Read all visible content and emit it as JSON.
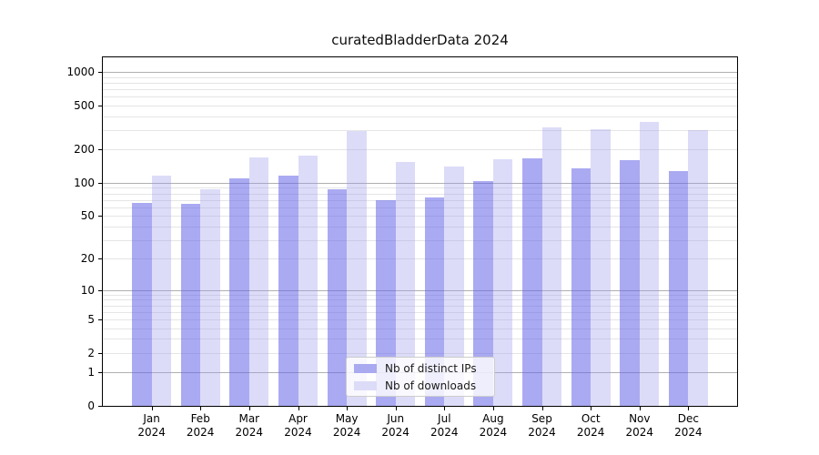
{
  "figure": {
    "title": "curatedBladderData 2024"
  },
  "chart_data": {
    "type": "bar",
    "title": "curatedBladderData 2024",
    "categories": [
      "Jan",
      "Feb",
      "Mar",
      "Apr",
      "May",
      "Jun",
      "Jul",
      "Aug",
      "Sep",
      "Oct",
      "Nov",
      "Dec"
    ],
    "category_year": "2024",
    "series": [
      {
        "name": "Nb of distinct IPs",
        "color": "#aaaaf0",
        "fill": "rgba(100,100,232,0.55)",
        "values": [
          66,
          64,
          110,
          117,
          88,
          70,
          73,
          103,
          166,
          135,
          160,
          128
        ]
      },
      {
        "name": "Nb of downloads",
        "color": "#dcdcf8",
        "fill": "rgba(155,155,235,0.35)",
        "values": [
          117,
          87,
          170,
          175,
          295,
          156,
          140,
          164,
          318,
          306,
          356,
          302
        ]
      }
    ],
    "yscale": "log1p",
    "yticks": [
      0,
      1,
      2,
      5,
      10,
      20,
      50,
      100,
      200,
      500,
      1000
    ],
    "major_gridlines": [
      1,
      10,
      100,
      1000
    ],
    "minor_gridlines": [
      2,
      3,
      4,
      5,
      6,
      7,
      8,
      9,
      20,
      30,
      40,
      50,
      60,
      70,
      80,
      90,
      200,
      300,
      400,
      500,
      600,
      700,
      800,
      900
    ],
    "ylim": [
      0,
      1355
    ],
    "xlabel": "",
    "ylabel": "",
    "grid": true,
    "legend_position": "lower center",
    "colors": {
      "grid_major": "#b0b0b0",
      "grid_minor": "#e5e5e5",
      "axis": "#000000",
      "legend_border": "#cccccc"
    }
  }
}
